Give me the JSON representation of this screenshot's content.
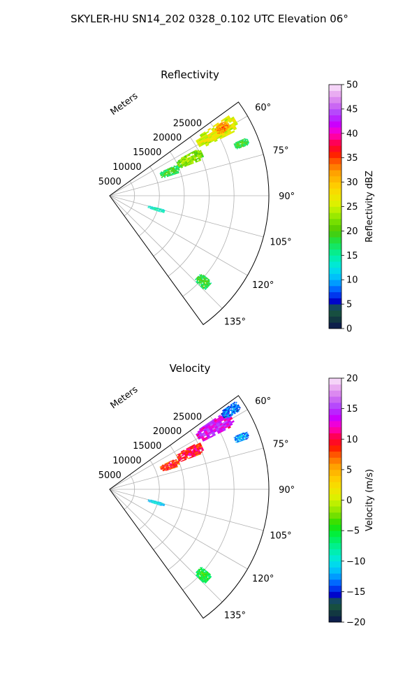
{
  "suptitle": "SKYLER-HU  SN14_202  0328_0.102 UTC Elevation 06°",
  "chart_data": [
    {
      "type": "heatmap",
      "subtype": "polar-sector",
      "title": "Reflectivity",
      "radial_label": "Meters",
      "r_ticks": [
        5000,
        10000,
        15000,
        20000,
        25000
      ],
      "r_tick_labels": [
        "5000",
        "10000",
        "15000",
        "20000",
        "25000"
      ],
      "rlim": [
        0,
        32000
      ],
      "theta_range_deg": [
        54,
        144
      ],
      "theta_ticks": [
        60,
        75,
        90,
        105,
        120,
        135
      ],
      "theta_tick_labels": [
        "60°",
        "75°",
        "90°",
        "105°",
        "120°",
        "135°"
      ],
      "grid": true,
      "colorbar": {
        "label": "Reflectivity dBZ",
        "range": [
          0,
          50
        ],
        "ticks": [
          0,
          5,
          10,
          15,
          20,
          25,
          30,
          35,
          40,
          45,
          50
        ],
        "tick_labels": [
          "0",
          "5",
          "10",
          "15",
          "20",
          "25",
          "30",
          "35",
          "40",
          "45",
          "50"
        ]
      },
      "echo_regions": [
        {
          "r": [
            11000,
            15000
          ],
          "theta": [
            65,
            72
          ],
          "value": 20
        },
        {
          "r": [
            15000,
            20500
          ],
          "theta": [
            62,
            69
          ],
          "value": 24
        },
        {
          "r": [
            20500,
            29500
          ],
          "theta": [
            56,
            63
          ],
          "value": 28
        },
        {
          "r": [
            25000,
            28000
          ],
          "theta": [
            57,
            61
          ],
          "value": 34
        },
        {
          "r": [
            27000,
            30000
          ],
          "theta": [
            67,
            70
          ],
          "value": 20
        },
        {
          "r": [
            8000,
            11500
          ],
          "theta": [
            104,
            108
          ],
          "value": 16
        },
        {
          "r": [
            24000,
            27000
          ],
          "theta": [
            130,
            135
          ],
          "value": 20
        }
      ]
    },
    {
      "type": "heatmap",
      "subtype": "polar-sector",
      "title": "Velocity",
      "radial_label": "Meters",
      "r_ticks": [
        5000,
        10000,
        15000,
        20000,
        25000
      ],
      "r_tick_labels": [
        "5000",
        "10000",
        "15000",
        "20000",
        "25000"
      ],
      "rlim": [
        0,
        32000
      ],
      "theta_range_deg": [
        54,
        144
      ],
      "theta_ticks": [
        60,
        75,
        90,
        105,
        120,
        135
      ],
      "theta_tick_labels": [
        "60°",
        "75°",
        "90°",
        "105°",
        "120°",
        "135°"
      ],
      "grid": true,
      "colorbar": {
        "label": "Velocity (m/s)",
        "range": [
          -20,
          20
        ],
        "ticks": [
          -20,
          -15,
          -10,
          -5,
          0,
          5,
          10,
          15,
          20
        ],
        "tick_labels": [
          "−20",
          "−15",
          "−10",
          "−5",
          "0",
          "5",
          "10",
          "15",
          "20"
        ]
      },
      "echo_regions": [
        {
          "r": [
            11000,
            15000
          ],
          "theta": [
            65,
            72
          ],
          "value": 10
        },
        {
          "r": [
            15000,
            20500
          ],
          "theta": [
            62,
            69
          ],
          "value": 11
        },
        {
          "r": [
            20500,
            28500
          ],
          "theta": [
            56,
            63
          ],
          "value": 15
        },
        {
          "r": [
            27000,
            31000
          ],
          "theta": [
            55,
            59
          ],
          "value": -12
        },
        {
          "r": [
            27000,
            30000
          ],
          "theta": [
            67,
            70
          ],
          "value": -11
        },
        {
          "r": [
            8000,
            11500
          ],
          "theta": [
            104,
            108
          ],
          "value": -9
        },
        {
          "r": [
            24000,
            27000
          ],
          "theta": [
            130,
            135
          ],
          "value": -4
        }
      ]
    }
  ]
}
